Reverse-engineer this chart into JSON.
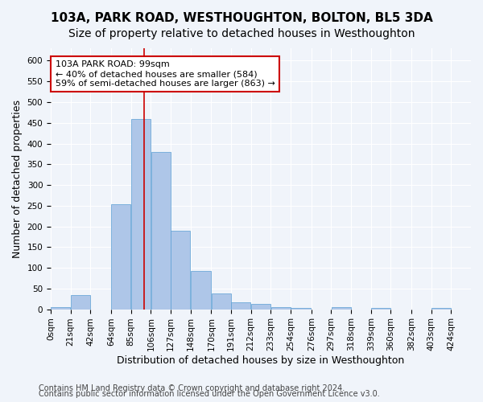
{
  "title1": "103A, PARK ROAD, WESTHOUGHTON, BOLTON, BL5 3DA",
  "title2": "Size of property relative to detached houses in Westhoughton",
  "xlabel": "Distribution of detached houses by size in Westhoughton",
  "ylabel": "Number of detached properties",
  "bin_labels": [
    "0sqm",
    "21sqm",
    "42sqm",
    "64sqm",
    "85sqm",
    "106sqm",
    "127sqm",
    "148sqm",
    "170sqm",
    "191sqm",
    "212sqm",
    "233sqm",
    "254sqm",
    "276sqm",
    "297sqm",
    "318sqm",
    "339sqm",
    "360sqm",
    "382sqm",
    "403sqm",
    "424sqm"
  ],
  "bin_edges": [
    0,
    21,
    42,
    64,
    85,
    106,
    127,
    148,
    170,
    191,
    212,
    233,
    254,
    276,
    297,
    318,
    339,
    360,
    382,
    403,
    424,
    445
  ],
  "bar_heights": [
    5,
    35,
    0,
    253,
    460,
    380,
    190,
    93,
    38,
    17,
    12,
    5,
    3,
    0,
    5,
    0,
    3,
    0,
    0,
    3,
    0
  ],
  "bar_color": "#aec6e8",
  "bar_edge_color": "#5a9fd4",
  "property_size": 99,
  "vline_color": "#cc0000",
  "annotation_text": "103A PARK ROAD: 99sqm\n← 40% of detached houses are smaller (584)\n59% of semi-detached houses are larger (863) →",
  "annotation_box_color": "#ffffff",
  "annotation_box_edge_color": "#cc0000",
  "ylim": [
    0,
    630
  ],
  "yticks": [
    0,
    50,
    100,
    150,
    200,
    250,
    300,
    350,
    400,
    450,
    500,
    550,
    600
  ],
  "footer1": "Contains HM Land Registry data © Crown copyright and database right 2024.",
  "footer2": "Contains public sector information licensed under the Open Government Licence v3.0.",
  "background_color": "#f0f4fa",
  "grid_color": "#ffffff",
  "title1_fontsize": 11,
  "title2_fontsize": 10,
  "xlabel_fontsize": 9,
  "ylabel_fontsize": 9,
  "tick_fontsize": 7.5,
  "annotation_fontsize": 8,
  "footer_fontsize": 7
}
